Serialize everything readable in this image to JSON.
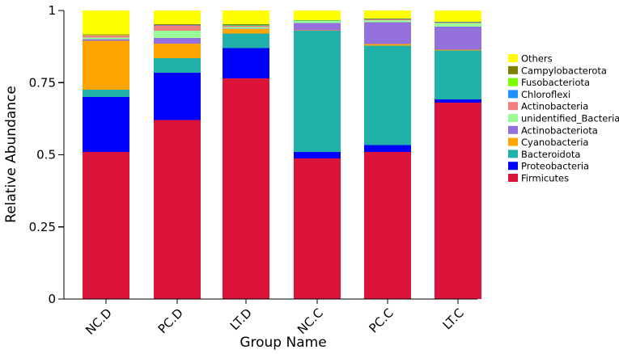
{
  "chart_data": {
    "type": "bar",
    "stacked": true,
    "title": "",
    "xlabel": "Group Name",
    "ylabel": "Relative Abundance",
    "ylim": [
      0,
      1
    ],
    "yticks": [
      {
        "value": 0,
        "label": "0"
      },
      {
        "value": 0.25,
        "label": "0.25"
      },
      {
        "value": 0.5,
        "label": "0.5"
      },
      {
        "value": 0.75,
        "label": "0.75"
      },
      {
        "value": 1,
        "label": "1"
      }
    ],
    "categories": [
      "NC.D",
      "PC.D",
      "LT.D",
      "NC.C",
      "PC.C",
      "LT.C"
    ],
    "grid": false,
    "legend_position": "right",
    "legend_order": [
      "Others",
      "Campylobacterota",
      "Fusobacteriota",
      "Chloroflexi",
      "Actinobacteria",
      "unidentified_Bacteria",
      "Actinobacteriota",
      "Cyanobacteria",
      "Bacteroidota",
      "Proteobacteria",
      "Firmicutes"
    ],
    "series": [
      {
        "name": "Firmicutes",
        "color": "#dc143c",
        "values": [
          0.51,
          0.62,
          0.765,
          0.487,
          0.51,
          0.68
        ]
      },
      {
        "name": "Proteobacteria",
        "color": "#0000ff",
        "values": [
          0.19,
          0.165,
          0.105,
          0.023,
          0.023,
          0.012
        ]
      },
      {
        "name": "Bacteroidota",
        "color": "#20b2aa",
        "values": [
          0.025,
          0.05,
          0.05,
          0.42,
          0.345,
          0.17
        ]
      },
      {
        "name": "Cyanobacteria",
        "color": "#ffa500",
        "values": [
          0.17,
          0.05,
          0.015,
          0.002,
          0.006,
          0.002
        ]
      },
      {
        "name": "Actinobacteriota",
        "color": "#9370db",
        "values": [
          0.005,
          0.02,
          0.002,
          0.025,
          0.075,
          0.08
        ]
      },
      {
        "name": "unidentified_Bacteria",
        "color": "#98fb98",
        "values": [
          0.006,
          0.025,
          0.006,
          0.006,
          0.008,
          0.012
        ]
      },
      {
        "name": "Actinobacteria",
        "color": "#f08080",
        "values": [
          0.008,
          0.018,
          0.004,
          0.001,
          0.002,
          0.002
        ]
      },
      {
        "name": "Chloroflexi",
        "color": "#1e90ff",
        "values": [
          0.001,
          0.001,
          0.001,
          0.001,
          0.001,
          0.001
        ]
      },
      {
        "name": "Fusobacteriota",
        "color": "#7cfc00",
        "values": [
          0.001,
          0.001,
          0.002,
          0.001,
          0.001,
          0.001
        ]
      },
      {
        "name": "Campylobacterota",
        "color": "#808000",
        "values": [
          0.002,
          0.002,
          0.002,
          0.001,
          0.001,
          0.001
        ]
      },
      {
        "name": "Others",
        "color": "#ffff00",
        "values": [
          0.082,
          0.048,
          0.048,
          0.033,
          0.028,
          0.039
        ]
      }
    ]
  }
}
